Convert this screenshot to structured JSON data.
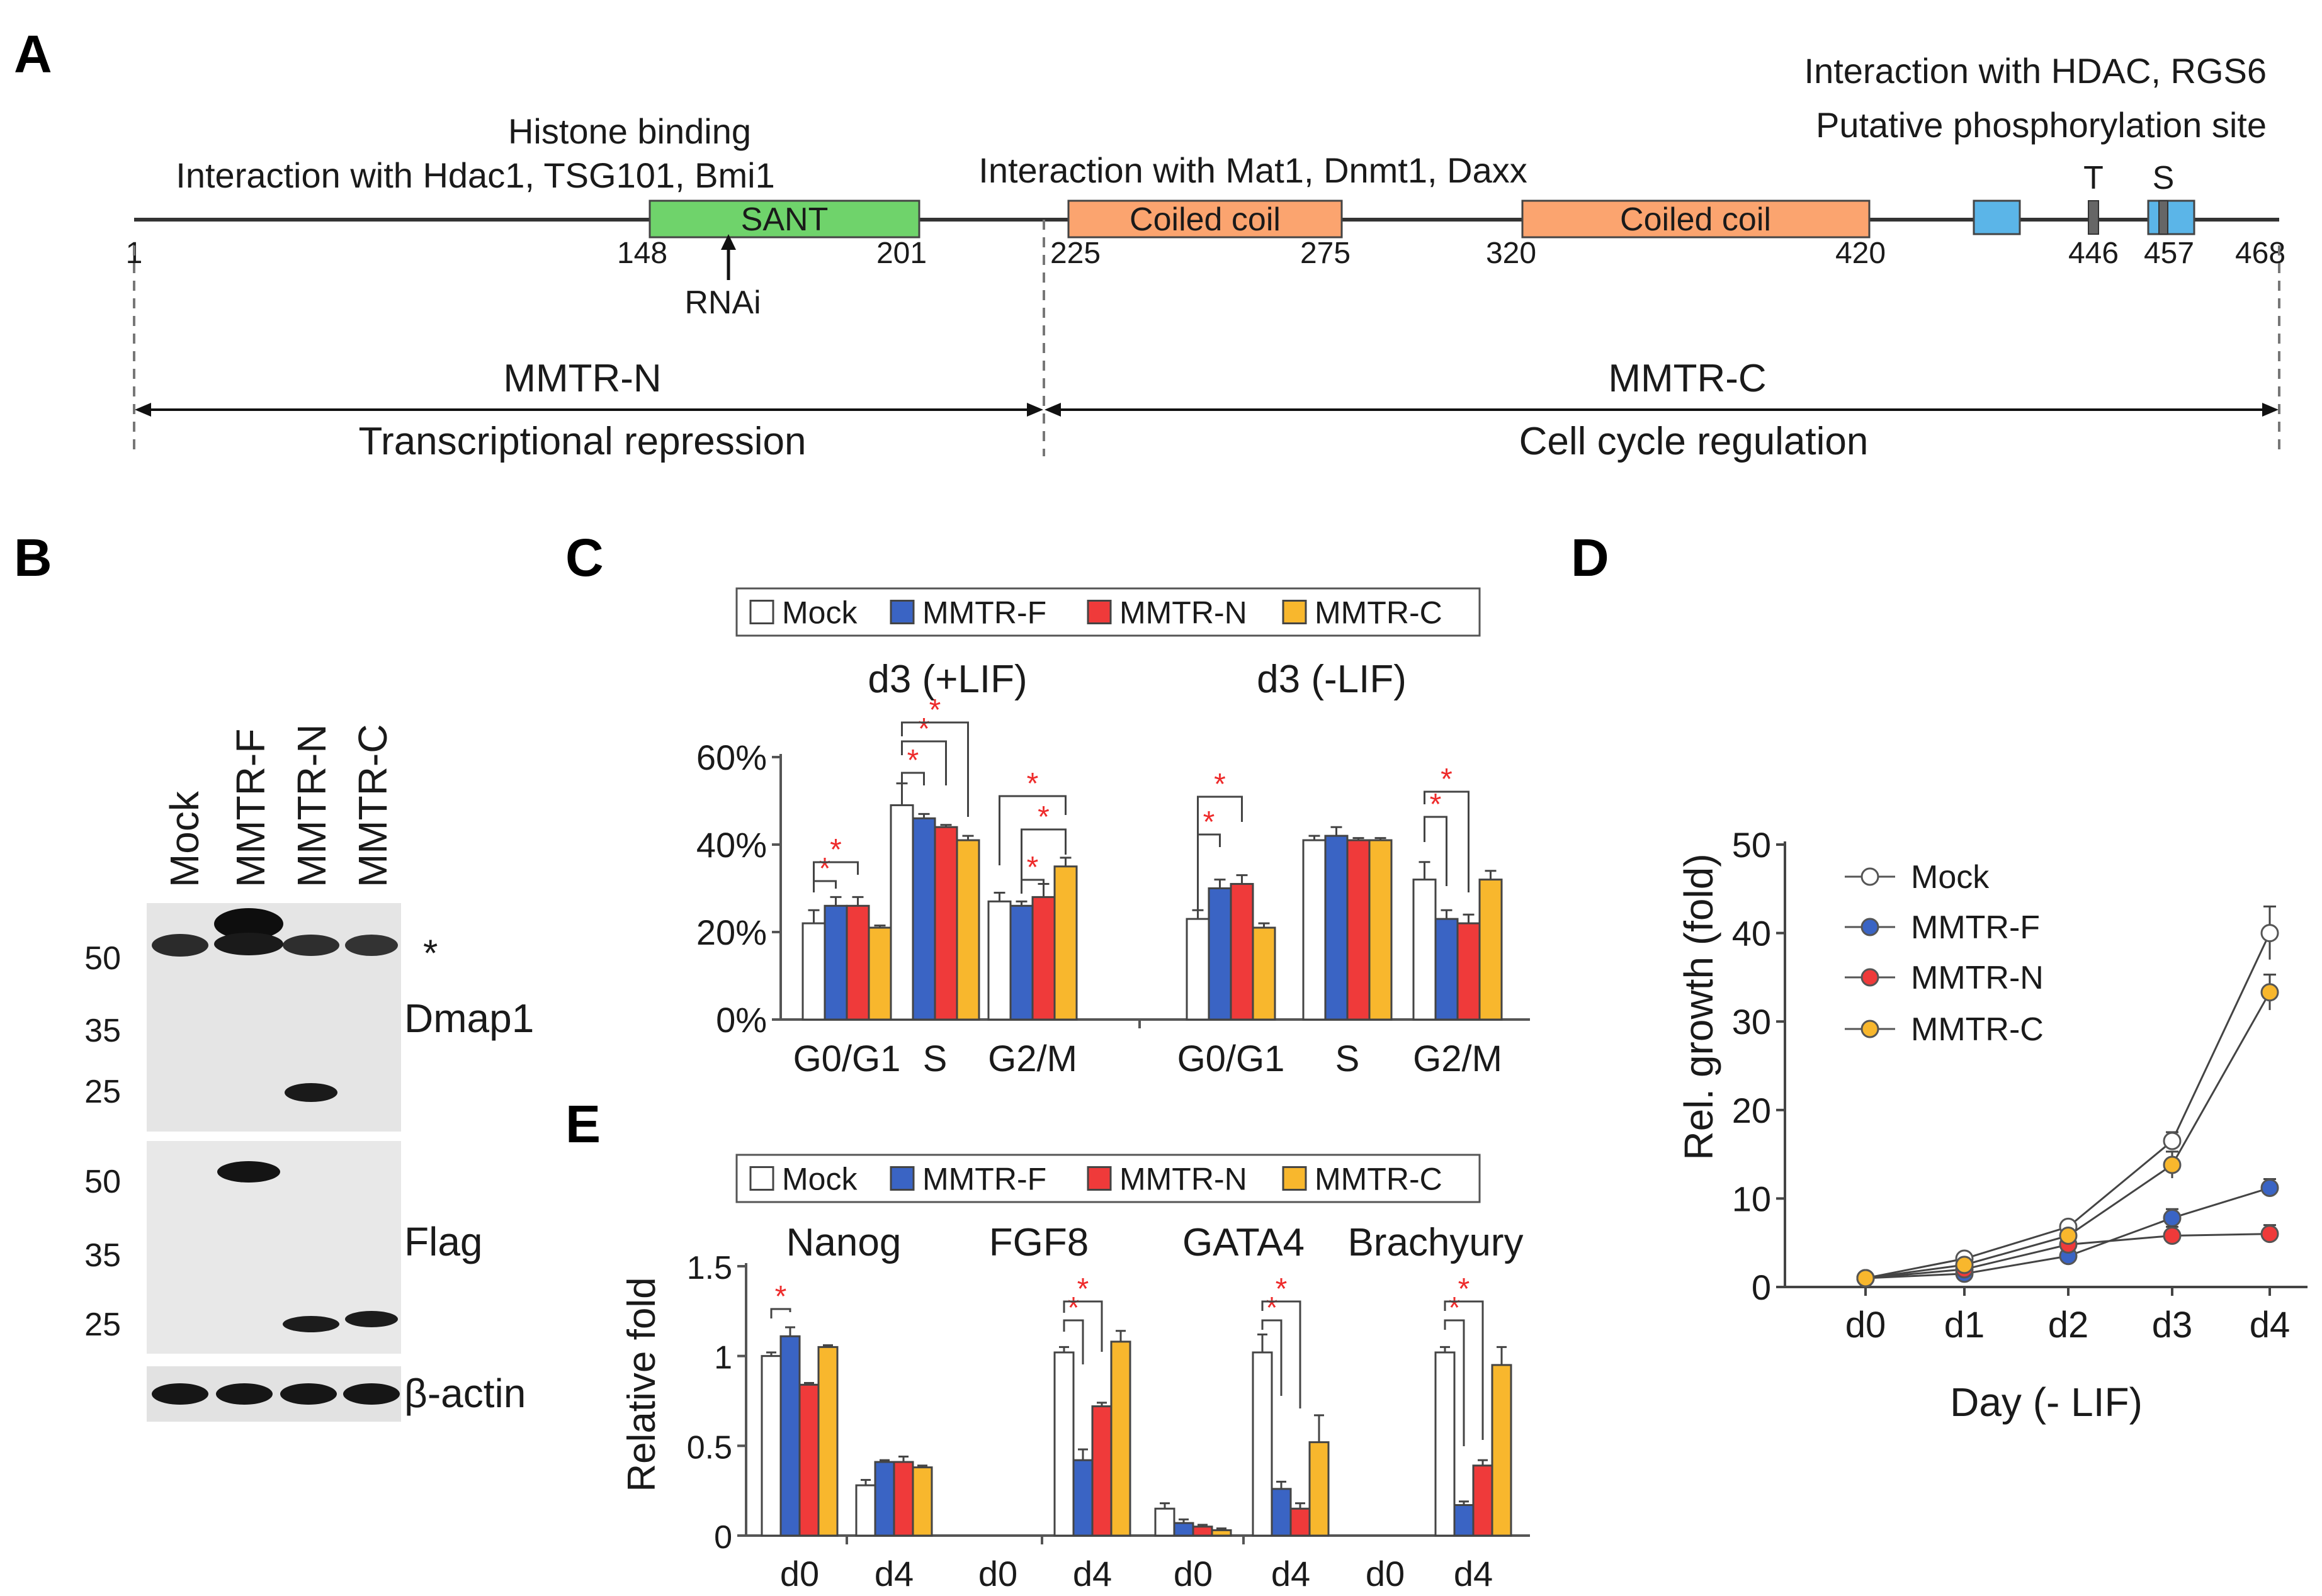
{
  "panel_labels": [
    "A",
    "B",
    "C",
    "D",
    "E"
  ],
  "colors": {
    "mock": "#ffffff",
    "mmtr_f": "#3a64c4",
    "mmtr_n": "#ef3a3a",
    "mmtr_c": "#f8b72d",
    "green_text": "#2fb34a",
    "green_box": "#6fd36b",
    "orange_text": "#e8622c",
    "orange_box": "#fba46f",
    "purple_text": "#6c52c9",
    "blue_box": "#5bb5e8",
    "star": "#ee2b2b"
  },
  "panel_a": {
    "label_green_1": "Histone binding",
    "label_green_2": "Interaction with Hdac1, TSG101, Bmi1",
    "label_orange": "Interaction with Mat1, Dnmt1, Daxx",
    "label_black": "Interaction with HDAC, RGS6",
    "label_purple": "Putative phosphorylation site",
    "total_length": 468,
    "domains": [
      {
        "name": "SANT",
        "start": 148,
        "end": 201,
        "type": "green"
      },
      {
        "name": "Coiled coil",
        "start": 225,
        "end": 275,
        "type": "orange"
      },
      {
        "name": "Coiled coil",
        "start": 320,
        "end": 420,
        "type": "orange"
      }
    ],
    "blue_boxes": [
      {
        "start": 430,
        "end": 440
      },
      {
        "start": 454,
        "end": 464
      }
    ],
    "sites": [
      {
        "letter": "T",
        "pos": 446
      },
      {
        "letter": "S",
        "pos": 457
      }
    ],
    "positions": [
      "1",
      "148",
      "201",
      "225",
      "275",
      "320",
      "420",
      "446",
      "457",
      "468"
    ],
    "rnai_label": "RNAi",
    "rnai_pos": 174,
    "region_n": {
      "name": "MMTR-N",
      "function": "Transcriptional repression"
    },
    "region_c": {
      "name": "MMTR-C",
      "function": "Cell cycle regulation"
    }
  },
  "panel_b": {
    "lanes": [
      "Mock",
      "MMTR-F",
      "MMTR-N",
      "MMTR-C"
    ],
    "blots": [
      {
        "name": "Dmap1",
        "markers": [
          "50",
          "35",
          "25"
        ],
        "star": "*"
      },
      {
        "name": "Flag",
        "markers": [
          "50",
          "35",
          "25"
        ]
      },
      {
        "name": "β-actin",
        "markers": []
      }
    ]
  },
  "chart_data": [
    {
      "panel": "C",
      "type": "bar",
      "legend": [
        "Mock",
        "MMTR-F",
        "MMTR-N",
        "MMTR-C"
      ],
      "groups": [
        {
          "title": "d3 (+LIF)",
          "categories": [
            "G0/G1",
            "S",
            "G2/M"
          ]
        },
        {
          "title": "d3 (-LIF)",
          "categories": [
            "G0/G1",
            "S",
            "G2/M"
          ]
        }
      ],
      "series": [
        {
          "name": "Mock",
          "values": [
            22,
            49,
            27,
            23,
            41,
            32
          ],
          "errors": [
            3,
            5,
            2,
            2,
            1,
            4
          ]
        },
        {
          "name": "MMTR-F",
          "values": [
            26,
            46,
            26,
            30,
            42,
            23
          ],
          "errors": [
            2,
            1,
            1,
            2,
            2,
            2
          ]
        },
        {
          "name": "MMTR-N",
          "values": [
            26,
            44,
            28,
            31,
            41,
            22
          ],
          "errors": [
            2,
            0.5,
            3,
            2,
            0.5,
            2
          ]
        },
        {
          "name": "MMTR-C",
          "values": [
            21,
            41,
            35,
            21,
            41,
            32
          ],
          "errors": [
            0.5,
            1,
            2,
            1,
            0.5,
            2
          ]
        }
      ],
      "yticks": [
        "0%",
        "20%",
        "40%",
        "60%"
      ],
      "ylim": [
        0,
        60
      ],
      "significance": "*"
    },
    {
      "panel": "D",
      "type": "line",
      "x": [
        "d0",
        "d1",
        "d2",
        "d3",
        "d4"
      ],
      "series": [
        {
          "name": "Mock",
          "values": [
            1,
            3.2,
            6.8,
            16.5,
            40
          ],
          "errors": [
            0.3,
            0.5,
            0.5,
            1,
            3
          ]
        },
        {
          "name": "MMTR-F",
          "values": [
            1,
            1.5,
            3.5,
            7.8,
            11.2
          ],
          "errors": [
            0.3,
            0.3,
            0.5,
            1,
            1
          ]
        },
        {
          "name": "MMTR-N",
          "values": [
            1,
            2.0,
            4.8,
            5.8,
            6.0
          ],
          "errors": [
            0.3,
            0.3,
            0.5,
            1,
            1
          ]
        },
        {
          "name": "MMTR-C",
          "values": [
            1,
            2.5,
            5.8,
            13.8,
            33.3
          ],
          "errors": [
            0.3,
            0.4,
            0.5,
            1.5,
            2
          ]
        }
      ],
      "ylabel": "Rel. growth (fold)",
      "xlabel": "Day (- LIF)",
      "yticks": [
        "0",
        "10",
        "20",
        "30",
        "40",
        "50"
      ],
      "ylim": [
        0,
        50
      ]
    },
    {
      "panel": "E",
      "type": "bar",
      "legend": [
        "Mock",
        "MMTR-F",
        "MMTR-N",
        "MMTR-C"
      ],
      "genes": [
        "Nanog",
        "FGF8",
        "GATA4",
        "Brachyury"
      ],
      "timepoints": [
        "d0",
        "d4"
      ],
      "series": [
        {
          "name": "Mock",
          "values": [
            1.0,
            0.28,
            0,
            1.02,
            0.15,
            1.02,
            0,
            1.02
          ],
          "errors": [
            0.02,
            0.03,
            0,
            0.03,
            0.03,
            0.1,
            0,
            0.03
          ]
        },
        {
          "name": "MMTR-F",
          "values": [
            1.11,
            0.41,
            0,
            0.42,
            0.07,
            0.26,
            0,
            0.17
          ],
          "errors": [
            0.05,
            0.01,
            0,
            0.06,
            0.02,
            0.04,
            0,
            0.02
          ]
        },
        {
          "name": "MMTR-N",
          "values": [
            0.84,
            0.41,
            0,
            0.72,
            0.05,
            0.15,
            0,
            0.39
          ],
          "errors": [
            0.01,
            0.03,
            0,
            0.02,
            0.01,
            0.03,
            0,
            0.03
          ]
        },
        {
          "name": "MMTR-C",
          "values": [
            1.05,
            0.38,
            0,
            1.08,
            0.03,
            0.52,
            0,
            0.95
          ],
          "errors": [
            0.01,
            0.01,
            0,
            0.06,
            0.01,
            0.15,
            0,
            0.1
          ]
        }
      ],
      "ylabel": "Relative fold",
      "yticks": [
        "0",
        "0.5",
        "1",
        "1.5"
      ],
      "ylim": [
        0,
        1.5
      ],
      "significance": "*"
    }
  ]
}
